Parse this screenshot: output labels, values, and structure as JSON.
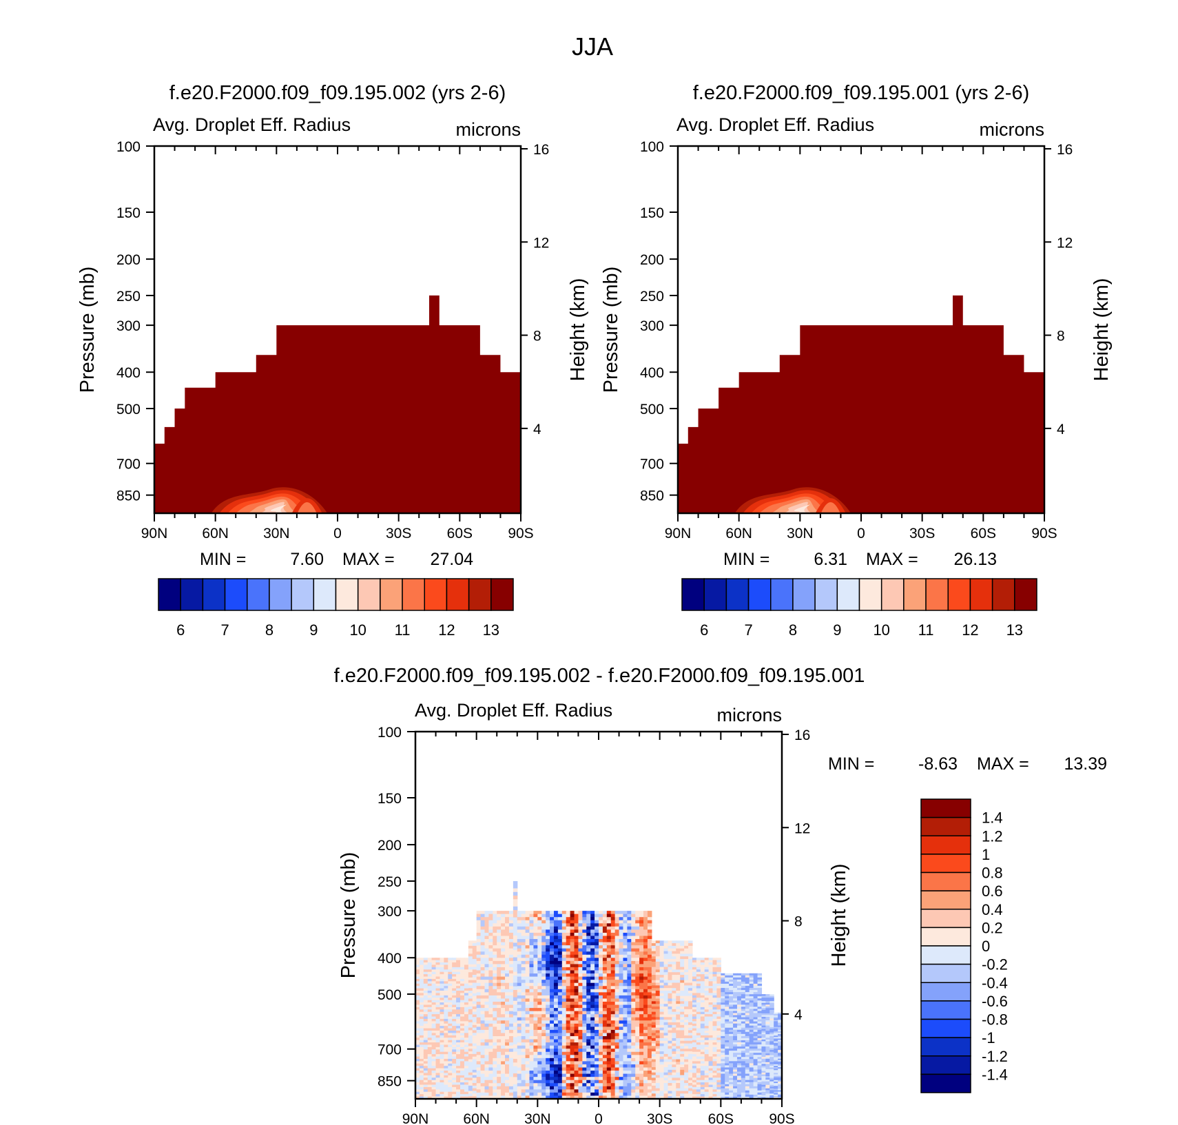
{
  "figure": {
    "title": "JJA"
  },
  "colors": {
    "abs_scale": [
      "#00007f",
      "#0619a3",
      "#0c32c7",
      "#1c4cfb",
      "#4a73fb",
      "#84a2fb",
      "#b4c8fb",
      "#dde9fb",
      "#fde9dd",
      "#fdc8b4",
      "#fba278",
      "#fb7548",
      "#fb4a1c",
      "#e5300c",
      "#b31e06",
      "#870000"
    ],
    "diff_scale": [
      "#00007f",
      "#0619a3",
      "#0c32c7",
      "#1c4cfb",
      "#4a73fb",
      "#84a2fb",
      "#b4c8fb",
      "#dde9fb",
      "#fde9dd",
      "#fdc8b4",
      "#fba278",
      "#fb7548",
      "#fb4a1c",
      "#e5300c",
      "#b31e06",
      "#870000"
    ]
  },
  "axes_text": {
    "pressure_ticks": [
      "100",
      "150",
      "200",
      "250",
      "300",
      "400",
      "500",
      "700",
      "850"
    ],
    "height_ticks": [
      "16",
      "12",
      "8",
      "4"
    ],
    "lat_ticks": [
      "90N",
      "60N",
      "30N",
      "0",
      "30S",
      "60S",
      "90S"
    ],
    "ylabel_left": "Pressure (mb)",
    "ylabel_right": "Height (km)"
  },
  "panels": [
    {
      "title": "f.e20.F2000.f09_f09.195.002 (yrs 2-6)",
      "field": "Avg. Droplet Eff. Radius",
      "units": "microns",
      "min_label": "MIN =",
      "min_value": "7.60",
      "max_label": "MAX =",
      "max_value": "27.04",
      "colorbar_labels": [
        "6",
        "7",
        "8",
        "9",
        "10",
        "11",
        "12",
        "13"
      ]
    },
    {
      "title": "f.e20.F2000.f09_f09.195.001 (yrs 2-6)",
      "field": "Avg. Droplet Eff. Radius",
      "units": "microns",
      "min_label": "MIN =",
      "min_value": "6.31",
      "max_label": "MAX =",
      "max_value": "26.13",
      "colorbar_labels": [
        "6",
        "7",
        "8",
        "9",
        "10",
        "11",
        "12",
        "13"
      ]
    },
    {
      "title": "f.e20.F2000.f09_f09.195.002 - f.e20.F2000.f09_f09.195.001",
      "field": "Avg. Droplet Eff. Radius",
      "units": "microns",
      "min_label": "MIN =",
      "min_value": "-8.63",
      "max_label": "MAX =",
      "max_value": "13.39",
      "colorbar_labels": [
        "1.4",
        "1.2",
        "1",
        "0.8",
        "0.6",
        "0.4",
        "0.2",
        "0",
        "-0.2",
        "-0.4",
        "-0.6",
        "-0.8",
        "-1",
        "-1.2",
        "-1.4"
      ]
    }
  ],
  "chart_data": [
    {
      "type": "heatmap",
      "title": "f.e20.F2000.f09_f09.195.002 (yrs 2-6)",
      "subtitle": "Avg. Droplet Eff. Radius",
      "units": "microns",
      "xlabel": "",
      "ylabel": "Pressure (mb)",
      "y2label": "Height (km)",
      "x_ticks": [
        "90N",
        "60N",
        "30N",
        "0",
        "30S",
        "60S",
        "90S"
      ],
      "y_ticks": [
        100,
        150,
        200,
        250,
        300,
        400,
        500,
        700,
        850
      ],
      "y2_ticks": [
        16,
        12,
        8,
        4
      ],
      "ylim": [
        100,
        1000
      ],
      "y_scale": "log",
      "contour_levels": [
        6,
        6.5,
        7,
        7.5,
        8,
        8.5,
        9,
        9.5,
        10,
        10.5,
        11,
        11.5,
        12,
        12.5,
        13
      ],
      "cloud_top_pressure_by_lat": {
        "lat": [
          -90,
          -85,
          -80,
          -75,
          -70,
          -60,
          -50,
          -45,
          -40,
          -35,
          -30,
          -20,
          -10,
          0,
          10,
          20,
          25,
          30,
          40,
          50,
          60,
          70,
          75,
          80,
          85,
          90
        ],
        "top_mb": [
          440,
          400,
          400,
          360,
          360,
          300,
          300,
          250,
          300,
          300,
          300,
          300,
          300,
          300,
          300,
          300,
          300,
          300,
          360,
          400,
          400,
          440,
          440,
          500,
          560,
          620
        ]
      },
      "min": 7.6,
      "max": 27.04
    },
    {
      "type": "heatmap",
      "title": "f.e20.F2000.f09_f09.195.001 (yrs 2-6)",
      "subtitle": "Avg. Droplet Eff. Radius",
      "units": "microns",
      "xlabel": "",
      "ylabel": "Pressure (mb)",
      "y2label": "Height (km)",
      "x_ticks": [
        "90N",
        "60N",
        "30N",
        "0",
        "30S",
        "60S",
        "90S"
      ],
      "y_ticks": [
        100,
        150,
        200,
        250,
        300,
        400,
        500,
        700,
        850
      ],
      "y2_ticks": [
        16,
        12,
        8,
        4
      ],
      "ylim": [
        100,
        1000
      ],
      "y_scale": "log",
      "contour_levels": [
        6,
        6.5,
        7,
        7.5,
        8,
        8.5,
        9,
        9.5,
        10,
        10.5,
        11,
        11.5,
        12,
        12.5,
        13
      ],
      "cloud_top_pressure_by_lat": {
        "lat": [
          -90,
          -80,
          -75,
          -70,
          -60,
          -50,
          -45,
          -40,
          -30,
          -20,
          -10,
          0,
          10,
          20,
          30,
          40,
          50,
          60,
          70,
          80,
          85,
          90
        ],
        "top_mb": [
          400,
          400,
          360,
          360,
          300,
          300,
          250,
          300,
          300,
          300,
          300,
          300,
          300,
          300,
          300,
          360,
          400,
          400,
          440,
          500,
          560,
          620
        ]
      },
      "min": 6.31,
      "max": 26.13
    },
    {
      "type": "heatmap",
      "title": "f.e20.F2000.f09_f09.195.002 - f.e20.F2000.f09_f09.195.001",
      "subtitle": "Avg. Droplet Eff. Radius",
      "units": "microns",
      "xlabel": "",
      "ylabel": "Pressure (mb)",
      "y2label": "Height (km)",
      "x_ticks": [
        "90N",
        "60N",
        "30N",
        "0",
        "30S",
        "60S",
        "90S"
      ],
      "y_ticks": [
        100,
        150,
        200,
        250,
        300,
        400,
        500,
        700,
        850
      ],
      "y2_ticks": [
        16,
        12,
        8,
        4
      ],
      "ylim": [
        100,
        1000
      ],
      "y_scale": "log",
      "contour_levels": [
        -1.4,
        -1.2,
        -1,
        -0.8,
        -0.6,
        -0.4,
        -0.2,
        0,
        0.2,
        0.4,
        0.6,
        0.8,
        1,
        1.2,
        1.4
      ],
      "min": -8.63,
      "max": 13.39
    }
  ]
}
